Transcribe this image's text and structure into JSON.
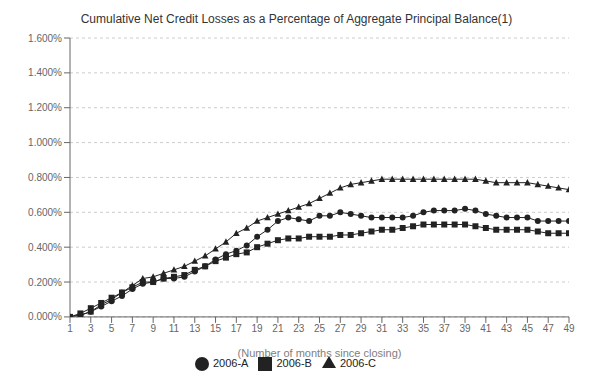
{
  "chart_data": {
    "type": "line",
    "title": "Cumulative Net Credit Losses as a Percentage of Aggregate Principal Balance(1)",
    "x_label": "(Number of months since closing)",
    "x": [
      1,
      2,
      3,
      4,
      5,
      6,
      7,
      8,
      9,
      10,
      11,
      12,
      13,
      14,
      15,
      16,
      17,
      18,
      19,
      20,
      21,
      22,
      23,
      24,
      25,
      26,
      27,
      28,
      29,
      30,
      31,
      32,
      33,
      34,
      35,
      36,
      37,
      38,
      39,
      40,
      41,
      42,
      43,
      44,
      45,
      46,
      47,
      48,
      49
    ],
    "series": [
      {
        "name": "2006-A",
        "color": "#222222",
        "marker": "circle",
        "values": [
          0.0,
          0.0001,
          0.0003,
          0.0006,
          0.0009,
          0.0012,
          0.0016,
          0.0019,
          0.002,
          0.0022,
          0.0022,
          0.0023,
          0.0026,
          0.0029,
          0.0033,
          0.0036,
          0.0038,
          0.0041,
          0.0046,
          0.005,
          0.0055,
          0.0057,
          0.0056,
          0.0055,
          0.0058,
          0.0058,
          0.006,
          0.0059,
          0.0058,
          0.0057,
          0.0057,
          0.0057,
          0.0057,
          0.0058,
          0.006,
          0.0061,
          0.0061,
          0.0061,
          0.0062,
          0.0061,
          0.0059,
          0.0058,
          0.0057,
          0.0057,
          0.0057,
          0.0055,
          0.0055,
          0.0055,
          0.0055
        ]
      },
      {
        "name": "2006-B",
        "color": "#222222",
        "marker": "square",
        "values": [
          0.0,
          0.0002,
          0.0005,
          0.0008,
          0.0011,
          0.0014,
          0.0017,
          0.002,
          0.002,
          0.0022,
          0.0023,
          0.0024,
          0.0027,
          0.0029,
          0.0032,
          0.0034,
          0.0036,
          0.0037,
          0.004,
          0.0042,
          0.0044,
          0.0045,
          0.0045,
          0.0046,
          0.0046,
          0.0046,
          0.0047,
          0.0047,
          0.0048,
          0.0049,
          0.005,
          0.005,
          0.0051,
          0.0052,
          0.0053,
          0.0053,
          0.0053,
          0.0053,
          0.0053,
          0.0052,
          0.0051,
          0.005,
          0.005,
          0.005,
          0.005,
          0.0049,
          0.0048,
          0.0048,
          0.0048
        ]
      },
      {
        "name": "2006-C",
        "color": "#222222",
        "marker": "triangle",
        "values": [
          0.0,
          0.0001,
          0.0003,
          0.0007,
          0.001,
          0.0014,
          0.0018,
          0.0022,
          0.0023,
          0.0025,
          0.0027,
          0.0029,
          0.0032,
          0.0035,
          0.0039,
          0.0043,
          0.0048,
          0.0051,
          0.0055,
          0.0057,
          0.0059,
          0.0061,
          0.0063,
          0.0065,
          0.0068,
          0.0071,
          0.0074,
          0.0076,
          0.0077,
          0.0078,
          0.0079,
          0.0079,
          0.0079,
          0.0079,
          0.0079,
          0.0079,
          0.0079,
          0.0079,
          0.0079,
          0.0079,
          0.0078,
          0.0077,
          0.0077,
          0.0077,
          0.0077,
          0.0076,
          0.0075,
          0.0074,
          0.0073
        ]
      }
    ],
    "xlim": [
      1,
      49
    ],
    "ylim": [
      0.0,
      0.016
    ],
    "xticks": [
      1,
      3,
      5,
      7,
      9,
      11,
      13,
      15,
      17,
      19,
      21,
      23,
      25,
      27,
      29,
      31,
      33,
      35,
      37,
      39,
      41,
      43,
      45,
      47,
      49
    ],
    "yticks": [
      {
        "value": 0.0,
        "label": "0.000%"
      },
      {
        "value": 0.002,
        "label": "0.200%"
      },
      {
        "value": 0.004,
        "label": "0.400%"
      },
      {
        "value": 0.006,
        "label": "0.600%"
      },
      {
        "value": 0.008,
        "label": "0.800%"
      },
      {
        "value": 0.01,
        "label": "1.000%"
      },
      {
        "value": 0.012,
        "label": "1.200%"
      },
      {
        "value": 0.014,
        "label": "1.400%"
      },
      {
        "value": 0.016,
        "label": "1.600%"
      }
    ],
    "grid": "y",
    "legend": "bottom"
  }
}
